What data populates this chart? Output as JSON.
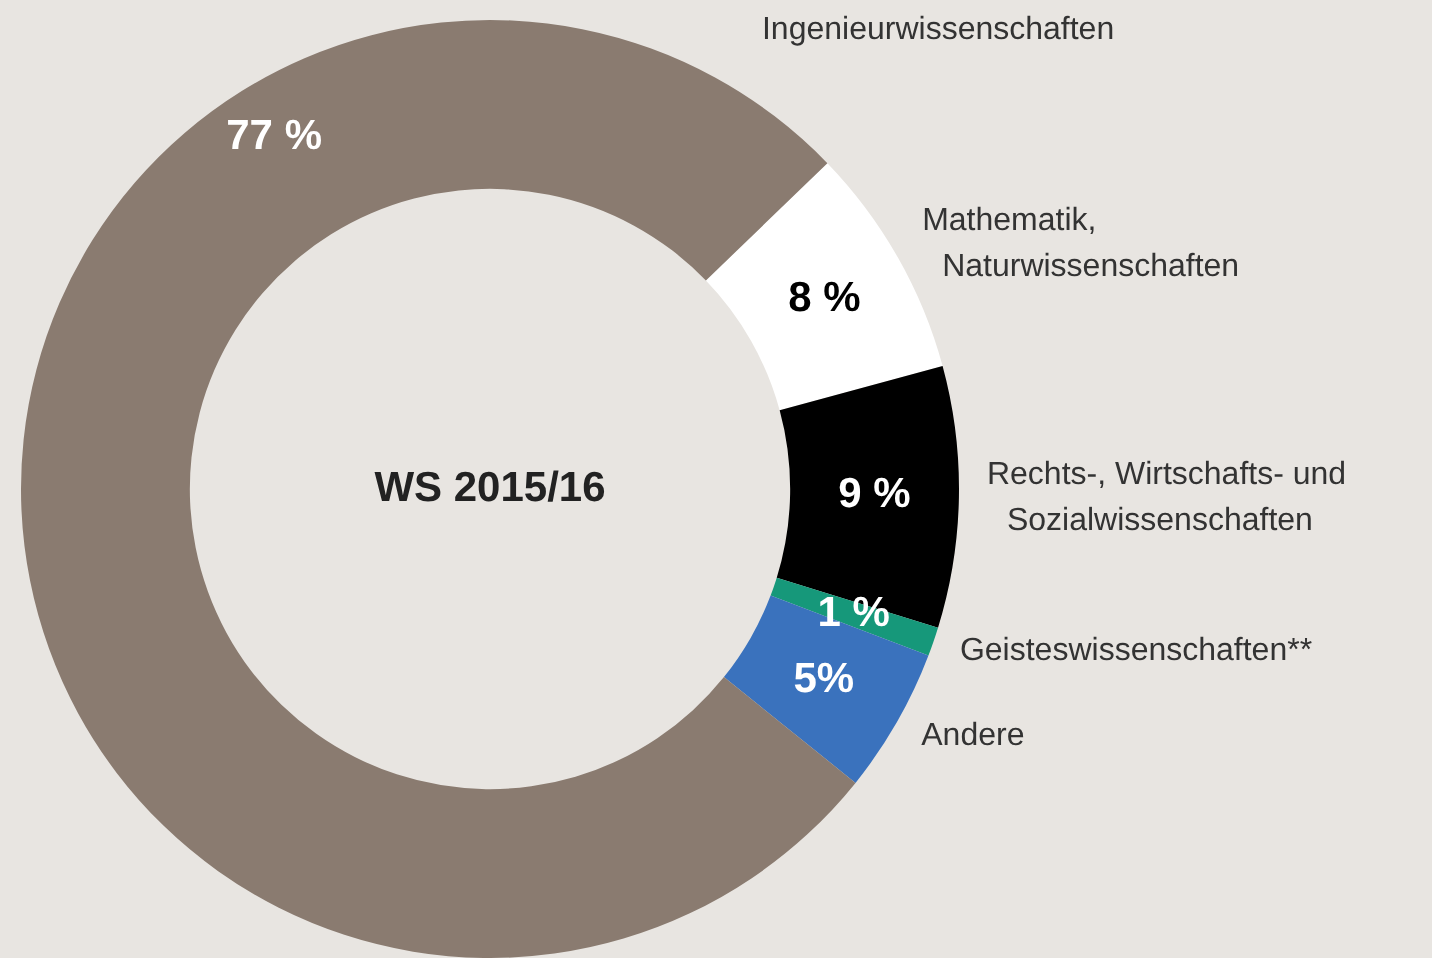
{
  "chart_data": {
    "type": "donut",
    "title": "WS 2015/16",
    "categories": [
      "Mathematik,\nNaturwissenschaften",
      "Rechts-, Wirtschafts- und\nSozialwissenschaften",
      "Geisteswissenschaften**",
      "Andere",
      "Ingenieurwissenschaften"
    ],
    "values": [
      8,
      9,
      1,
      5,
      77
    ],
    "colors": [
      "#ffffff",
      "#000000",
      "#16987a",
      "#3a72bd",
      "#8a7b70"
    ],
    "value_labels": [
      "8 %",
      "9 %",
      "1 %",
      "5%",
      "77 %"
    ],
    "legend": false
  }
}
